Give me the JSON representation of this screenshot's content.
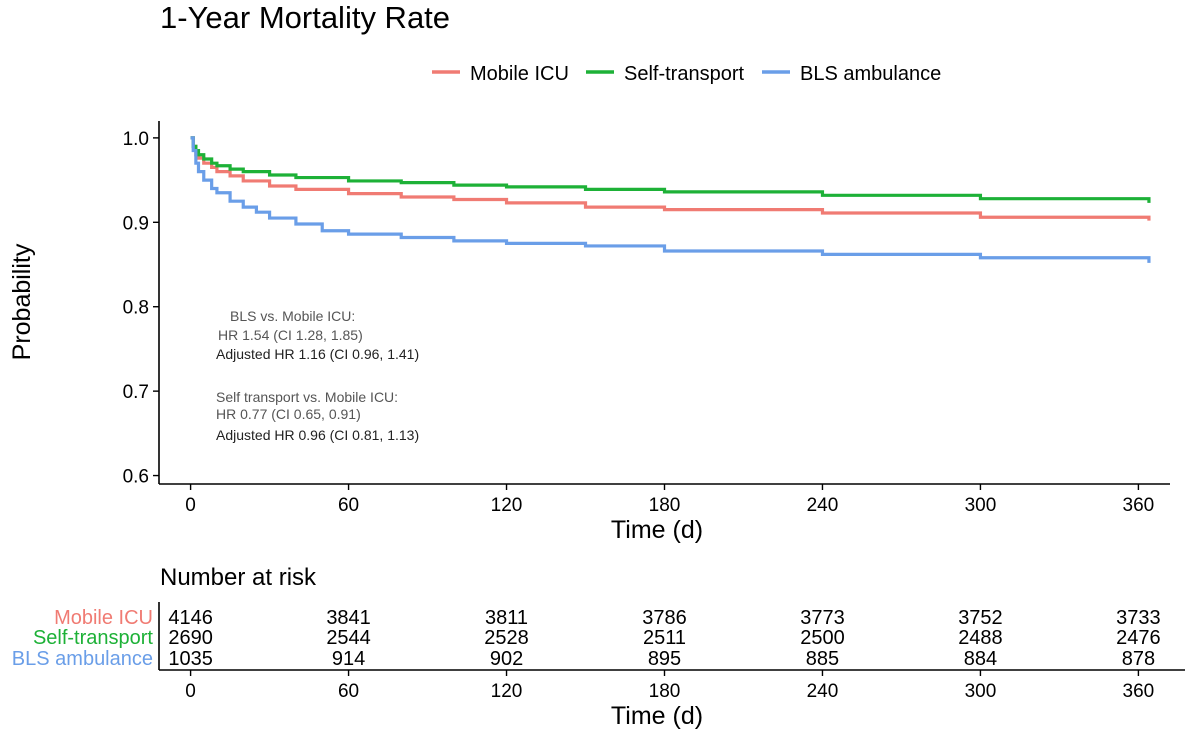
{
  "chart_data": {
    "type": "line",
    "step": true,
    "title": "1-Year Mortality Rate",
    "xlabel": "Time (d)",
    "ylabel": "Probability",
    "xlim": [
      -12,
      372
    ],
    "ylim": [
      0.59,
      1.02
    ],
    "x_ticks": [
      0,
      60,
      120,
      180,
      240,
      300,
      360
    ],
    "x_tick_labels": [
      "0",
      "60",
      "120",
      "180",
      "240",
      "300",
      "360"
    ],
    "y_ticks": [
      0.6,
      0.7,
      0.8,
      0.9,
      1.0
    ],
    "y_tick_labels": [
      "0.6",
      "0.7",
      "0.8",
      "0.9",
      "1.0"
    ],
    "legend_position": "top",
    "series": [
      {
        "name": "Mobile ICU",
        "color": "#F07B73",
        "x": [
          0,
          1,
          2,
          3,
          5,
          8,
          10,
          15,
          20,
          30,
          40,
          60,
          80,
          100,
          120,
          150,
          180,
          240,
          300,
          364
        ],
        "y": [
          1.0,
          0.99,
          0.98,
          0.976,
          0.97,
          0.965,
          0.96,
          0.955,
          0.949,
          0.943,
          0.939,
          0.934,
          0.93,
          0.927,
          0.923,
          0.918,
          0.915,
          0.911,
          0.906,
          0.902
        ]
      },
      {
        "name": "Self-transport",
        "color": "#1DB137",
        "x": [
          0,
          1,
          2,
          3,
          5,
          8,
          10,
          15,
          20,
          30,
          40,
          60,
          80,
          100,
          120,
          150,
          180,
          240,
          300,
          364
        ],
        "y": [
          1.0,
          0.99,
          0.985,
          0.98,
          0.975,
          0.97,
          0.967,
          0.963,
          0.96,
          0.956,
          0.953,
          0.949,
          0.947,
          0.944,
          0.942,
          0.939,
          0.936,
          0.932,
          0.928,
          0.923
        ]
      },
      {
        "name": "BLS ambulance",
        "color": "#6A9EE8",
        "x": [
          0,
          1,
          2,
          3,
          5,
          8,
          10,
          15,
          20,
          25,
          30,
          40,
          50,
          60,
          80,
          100,
          120,
          150,
          180,
          240,
          300,
          364
        ],
        "y": [
          1.0,
          0.985,
          0.97,
          0.96,
          0.95,
          0.94,
          0.935,
          0.925,
          0.918,
          0.912,
          0.905,
          0.898,
          0.89,
          0.886,
          0.882,
          0.878,
          0.875,
          0.872,
          0.866,
          0.862,
          0.858,
          0.852
        ]
      }
    ],
    "annotations": [
      [
        "BLS  vs. Mobile ICU:",
        "HR 1.54 (CI 1.28, 1.85)",
        "Adjusted HR 1.16 (CI 0.96, 1.41)"
      ],
      [
        "Self transport   vs. Mobile ICU:",
        "HR 0.77 (CI 0.65, 0.91)",
        "Adjusted HR 0.96  (CI 0.81, 1.13)"
      ]
    ],
    "risk_table": {
      "title": "Number at risk",
      "xlabel": "Time (d)",
      "times": [
        0,
        60,
        120,
        180,
        240,
        300,
        360
      ],
      "time_labels": [
        "0",
        "60",
        "120",
        "180",
        "240",
        "300",
        "360"
      ],
      "rows": [
        {
          "name": "Mobile ICU",
          "color": "#F07B73",
          "values": [
            "4146",
            "3841",
            "3811",
            "3786",
            "3773",
            "3752",
            "3733"
          ]
        },
        {
          "name": "Self-transport",
          "color": "#1DB137",
          "values": [
            "2690",
            "2544",
            "2528",
            "2511",
            "2500",
            "2488",
            "2476"
          ]
        },
        {
          "name": "BLS ambulance",
          "color": "#6A9EE8",
          "values": [
            "1035",
            "914",
            "902",
            "895",
            "885",
            "884",
            "878"
          ]
        }
      ]
    }
  }
}
